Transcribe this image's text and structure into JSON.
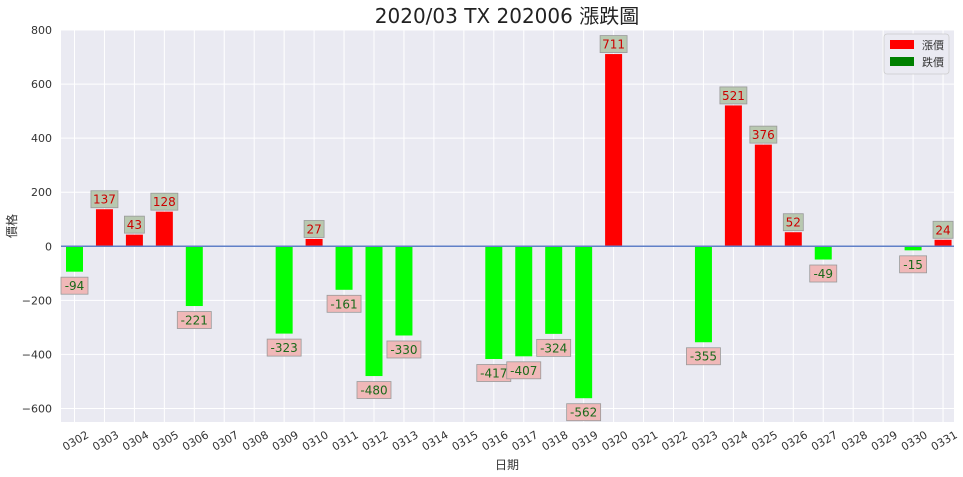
{
  "chart_data": {
    "type": "bar",
    "title": "2020/03 TX 202006 漲跌圖",
    "xlabel": "日期",
    "ylabel": "價格",
    "ylim": [
      -650,
      800
    ],
    "yticks": [
      -600,
      -400,
      -200,
      0,
      200,
      400,
      600,
      800
    ],
    "grid": true,
    "legend_position": "top-right",
    "legend": [
      {
        "label": "漲價",
        "color": "#ff0000"
      },
      {
        "label": "跌價",
        "color": "#008000"
      }
    ],
    "colors": {
      "up": "#ff0000",
      "down": "#00ff00",
      "up_label_bg": "#b8c8b0",
      "down_label_bg": "#f0b8b8",
      "up_label_text": "#cc0000",
      "down_label_text": "#1a6a1a",
      "zero_line": "#6080c8",
      "plot_bg": "#eaeaf2"
    },
    "categories": [
      "0302",
      "0303",
      "0304",
      "0305",
      "0306",
      "0307",
      "0308",
      "0309",
      "0310",
      "0311",
      "0312",
      "0313",
      "0314",
      "0315",
      "0316",
      "0317",
      "0318",
      "0319",
      "0320",
      "0321",
      "0322",
      "0323",
      "0324",
      "0325",
      "0326",
      "0327",
      "0328",
      "0329",
      "0330",
      "0331"
    ],
    "values": [
      -94,
      137,
      43,
      128,
      -221,
      null,
      null,
      -323,
      27,
      -161,
      -480,
      -330,
      null,
      null,
      -417,
      -407,
      -324,
      -562,
      711,
      null,
      null,
      -355,
      521,
      376,
      52,
      -49,
      null,
      null,
      -15,
      24
    ]
  }
}
